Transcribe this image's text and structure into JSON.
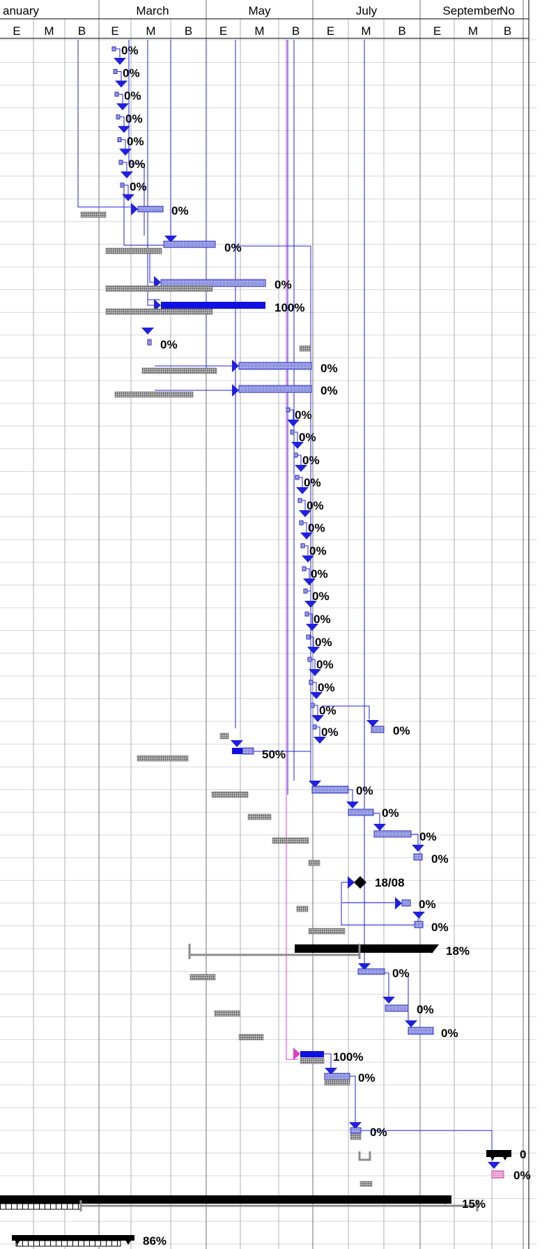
{
  "timescale": {
    "months": [
      {
        "label": "anuary",
        "col": 0
      },
      {
        "label": "March",
        "col": 3
      },
      {
        "label": "May",
        "col": 6
      },
      {
        "label": "July",
        "col": 9
      },
      {
        "label": "September",
        "col": 12
      },
      {
        "label": "No",
        "col": 15
      }
    ],
    "thirds": [
      "E",
      "M",
      "B",
      "E",
      "M",
      "B",
      "E",
      "M",
      "B",
      "E",
      "M",
      "B",
      "E",
      "M",
      "B"
    ]
  },
  "colors": {
    "link": "#2020e0",
    "link_critical": "#e040c0",
    "bar_fill": "#c8d0f4",
    "bar_hatch": "#3030c0",
    "baseline": "#8c8c8c",
    "summary": "#000000",
    "progress": "#1010e0",
    "milestone": "#000000",
    "grid": "#b0b0b0",
    "row_line": "#d8d8d8"
  },
  "task_labels": [
    {
      "id": "t01",
      "text": "0%"
    },
    {
      "id": "t02",
      "text": "0%"
    },
    {
      "id": "t03",
      "text": "0%"
    },
    {
      "id": "t04",
      "text": "0%"
    },
    {
      "id": "t05",
      "text": "0%"
    },
    {
      "id": "t06",
      "text": "0%"
    },
    {
      "id": "t07",
      "text": "0%"
    },
    {
      "id": "t08",
      "text": "0%"
    },
    {
      "id": "t09",
      "text": "0%"
    },
    {
      "id": "t10",
      "text": "0%"
    },
    {
      "id": "t11",
      "text": "0%"
    },
    {
      "id": "t12",
      "text": "100%"
    },
    {
      "id": "t13",
      "text": "0%"
    },
    {
      "id": "t14",
      "text": "0%"
    },
    {
      "id": "t15",
      "text": "0%"
    },
    {
      "id": "t16",
      "text": "0%"
    },
    {
      "id": "t17",
      "text": "0%"
    },
    {
      "id": "t18",
      "text": "0%"
    },
    {
      "id": "t19",
      "text": "0%"
    },
    {
      "id": "t20",
      "text": "0%"
    },
    {
      "id": "t21",
      "text": "0%"
    },
    {
      "id": "t22",
      "text": "0%"
    },
    {
      "id": "t23",
      "text": "0%"
    },
    {
      "id": "t24",
      "text": "0%"
    },
    {
      "id": "t25",
      "text": "0%"
    },
    {
      "id": "t26",
      "text": "0%"
    },
    {
      "id": "t27",
      "text": "0%"
    },
    {
      "id": "t28",
      "text": "0%"
    },
    {
      "id": "t29",
      "text": "0%"
    },
    {
      "id": "t30",
      "text": "0%"
    },
    {
      "id": "t31",
      "text": "0%"
    },
    {
      "id": "t32",
      "text": "0%"
    },
    {
      "id": "t33",
      "text": "50%"
    },
    {
      "id": "t34",
      "text": "0%"
    },
    {
      "id": "t35",
      "text": "0%"
    },
    {
      "id": "t36",
      "text": "0%"
    },
    {
      "id": "t37",
      "text": "0%"
    },
    {
      "id": "t38",
      "text": "18/08"
    },
    {
      "id": "t39",
      "text": "0%"
    },
    {
      "id": "t40",
      "text": "0%"
    },
    {
      "id": "t41",
      "text": "18%"
    },
    {
      "id": "t42",
      "text": "0%"
    },
    {
      "id": "t43",
      "text": "0%"
    },
    {
      "id": "t44",
      "text": "0%"
    },
    {
      "id": "t45",
      "text": "100%"
    },
    {
      "id": "t46",
      "text": "0%"
    },
    {
      "id": "t47",
      "text": "0%"
    },
    {
      "id": "t48",
      "text": "0"
    },
    {
      "id": "t49",
      "text": "0%"
    },
    {
      "id": "t50",
      "text": "15%"
    },
    {
      "id": "t51",
      "text": "86%"
    }
  ]
}
